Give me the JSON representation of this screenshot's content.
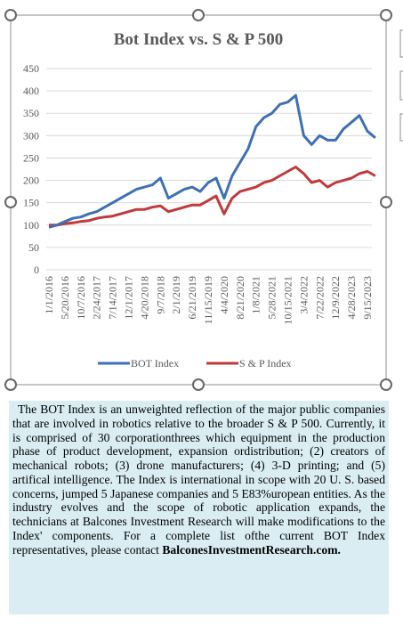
{
  "chart_data": {
    "type": "line",
    "title": "Bot Index vs. S & P 500",
    "categories": [
      "1/1/2016",
      null,
      "5/20/2016",
      null,
      "10/7/2016",
      null,
      "2/24/2017",
      null,
      "7/14/2017",
      null,
      "12/1/2017",
      null,
      "4/20/2018",
      null,
      "9/7/2018",
      null,
      "2/1/2019",
      null,
      "6/21/2019",
      null,
      "11/15/2019",
      null,
      "4/4/2020",
      null,
      "8/21/2020",
      null,
      "1/8/2021",
      null,
      "5/28/2021",
      null,
      "10/15/2021",
      null,
      "3/4/2022",
      null,
      "7/22/2022",
      null,
      "12/9/2022",
      null,
      "4/28/2023",
      null,
      "9/15/2023",
      null
    ],
    "series": [
      {
        "name": "BOT Index",
        "color": "#3e70b6",
        "values": [
          95,
          100,
          108,
          115,
          118,
          125,
          130,
          140,
          150,
          160,
          170,
          180,
          185,
          190,
          205,
          160,
          170,
          180,
          185,
          175,
          195,
          205,
          160,
          210,
          240,
          270,
          320,
          340,
          350,
          370,
          375,
          390,
          300,
          280,
          300,
          290,
          290,
          315,
          330,
          345,
          310,
          295
        ]
      },
      {
        "name": "S & P Index",
        "color": "#c0393b",
        "values": [
          100,
          100,
          103,
          105,
          108,
          110,
          115,
          118,
          120,
          125,
          130,
          135,
          135,
          140,
          143,
          130,
          135,
          140,
          145,
          145,
          155,
          165,
          125,
          160,
          175,
          180,
          185,
          195,
          200,
          210,
          220,
          230,
          215,
          195,
          200,
          185,
          195,
          200,
          205,
          215,
          220,
          210
        ]
      }
    ],
    "ylim": [
      0,
      450
    ],
    "yticks": [
      0,
      50,
      100,
      150,
      200,
      250,
      300,
      350,
      400,
      450
    ],
    "grid": true,
    "legend": "bottom"
  },
  "text_box": {
    "text": "The BOT Index is an unweighted reflection of the major public companies that are involved in robotics relative to the broader S & P 500. Currently, it is comprised of 30 corporationthrees which equipment in the production phase of product development, expansion ordistribution; (2) creators of mechanical robots; (3) drone manufacturers; (4) 3-D printing; and (5) artifical intelligence. The Index is international in scope with 20 U. S. based concerns, jumped 5 Japanese companies and 5 E83%uropean entities. As the industry evolves and the scope of robotic application expands, the technicians at Balcones Investment Research will make modifications to the Index' components. For a complete list ofthe current BOT Index representatives, please contact",
    "link": "BalconesInvestmentResearch.com."
  }
}
